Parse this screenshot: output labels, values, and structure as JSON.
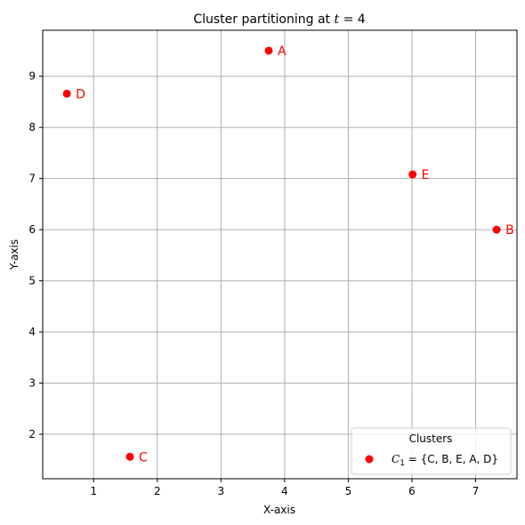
{
  "chart_data": {
    "type": "scatter",
    "title": "Cluster partitioning at t = 4",
    "title_parts": {
      "prefix": "Cluster partitioning at ",
      "var": "t",
      "suffix": " = 4"
    },
    "xlabel": "X-axis",
    "ylabel": "Y-axis",
    "xlim": [
      0.2,
      7.65
    ],
    "ylim": [
      1.13,
      9.9
    ],
    "xticks": [
      1,
      2,
      3,
      4,
      5,
      6,
      7
    ],
    "yticks": [
      2,
      3,
      4,
      5,
      6,
      7,
      8,
      9
    ],
    "grid": true,
    "colors": {
      "point": "#ff0000",
      "grid": "#b0b0b0"
    },
    "series": [
      {
        "name": "C1 = {C, B, E, A, D}",
        "points": [
          {
            "label": "A",
            "x": 3.75,
            "y": 9.5
          },
          {
            "label": "B",
            "x": 7.33,
            "y": 6.0
          },
          {
            "label": "C",
            "x": 1.57,
            "y": 1.56
          },
          {
            "label": "D",
            "x": 0.58,
            "y": 8.66
          },
          {
            "label": "E",
            "x": 6.01,
            "y": 7.08
          }
        ]
      }
    ],
    "legend": {
      "title": "Clusters",
      "placement": "lower-right",
      "entry": {
        "var": "C",
        "sub": "1",
        "rest": " = {C, B, E, A, D}"
      }
    }
  }
}
